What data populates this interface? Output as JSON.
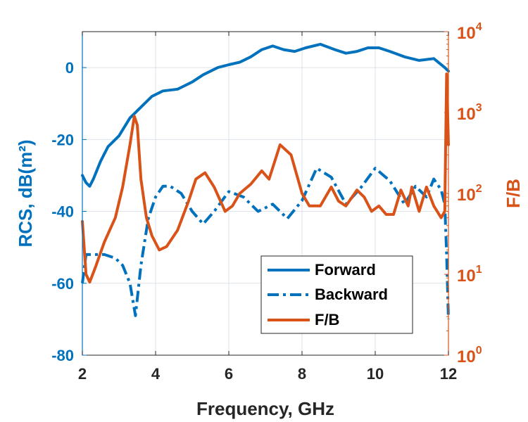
{
  "chart_data": {
    "type": "line",
    "xlabel": "Frequency, GHz",
    "ylabel_left": "RCS, dB(m²)",
    "ylabel_right": "F/B",
    "xlim": [
      2,
      12
    ],
    "ylim_left": [
      -80,
      10
    ],
    "ylim_right": [
      1,
      10000
    ],
    "y_right_scale": "log",
    "xticks": [
      "2",
      "4",
      "6",
      "8",
      "10",
      "12"
    ],
    "yticks_left": [
      "-80",
      "-60",
      "-40",
      "-20",
      "0"
    ],
    "yticks_right": [
      {
        "base": "10",
        "exp": "0"
      },
      {
        "base": "10",
        "exp": "1"
      },
      {
        "base": "10",
        "exp": "2"
      },
      {
        "base": "10",
        "exp": "3"
      },
      {
        "base": "10",
        "exp": "4"
      }
    ],
    "grid": true,
    "legend_position": "bottom-right",
    "colors": {
      "blue": "#0072BD",
      "orange": "#D95319"
    },
    "series": [
      {
        "name": "Forward",
        "axis": "left",
        "style": "solid",
        "color": "#0072BD",
        "x": [
          2.0,
          2.1,
          2.2,
          2.3,
          2.5,
          2.7,
          3.0,
          3.3,
          3.6,
          3.9,
          4.2,
          4.6,
          5.0,
          5.3,
          5.7,
          6.0,
          6.3,
          6.6,
          6.9,
          7.2,
          7.5,
          7.8,
          8.1,
          8.5,
          8.9,
          9.2,
          9.5,
          9.8,
          10.1,
          10.4,
          10.8,
          11.2,
          11.6,
          11.9,
          12.0
        ],
        "y": [
          -30,
          -32,
          -33,
          -31,
          -26,
          -22,
          -19,
          -14,
          -11,
          -8,
          -6.5,
          -6,
          -4,
          -2,
          0,
          0.8,
          1.5,
          3,
          5,
          6,
          5,
          4.5,
          5.5,
          6.5,
          5,
          4,
          4.5,
          5.5,
          5.5,
          4.5,
          3,
          2,
          2.5,
          0,
          -1
        ]
      },
      {
        "name": "Backward",
        "axis": "left",
        "style": "dashdot",
        "color": "#0072BD",
        "x": [
          2.0,
          2.1,
          2.3,
          2.6,
          2.9,
          3.1,
          3.3,
          3.45,
          3.6,
          3.8,
          4.0,
          4.2,
          4.4,
          4.7,
          5.0,
          5.3,
          5.6,
          6.0,
          6.4,
          6.8,
          7.2,
          7.6,
          8.0,
          8.4,
          8.8,
          9.2,
          9.6,
          10.0,
          10.4,
          10.8,
          11.1,
          11.4,
          11.6,
          11.8,
          11.9,
          11.95,
          12.0
        ],
        "y": [
          -60,
          -52,
          -52,
          -52,
          -53,
          -55,
          -60,
          -69,
          -55,
          -42,
          -36,
          -33,
          -33,
          -35,
          -40,
          -43.5,
          -40,
          -34.5,
          -36,
          -40,
          -38,
          -42,
          -37,
          -28,
          -30.5,
          -38,
          -33.5,
          -28,
          -31.5,
          -38,
          -33,
          -36,
          -31,
          -34,
          -38,
          -52,
          -70
        ]
      },
      {
        "name": "F/B",
        "axis": "right",
        "style": "solid",
        "color": "#D95319",
        "x": [
          2.0,
          2.1,
          2.2,
          2.35,
          2.6,
          2.9,
          3.1,
          3.3,
          3.42,
          3.5,
          3.6,
          3.75,
          3.9,
          4.1,
          4.3,
          4.6,
          4.9,
          5.1,
          5.35,
          5.6,
          5.9,
          6.1,
          6.3,
          6.6,
          6.9,
          7.1,
          7.4,
          7.7,
          8.0,
          8.2,
          8.5,
          8.8,
          9.0,
          9.2,
          9.5,
          9.7,
          9.9,
          10.1,
          10.3,
          10.5,
          10.7,
          10.9,
          11.0,
          11.2,
          11.4,
          11.6,
          11.8,
          11.9,
          11.95,
          12.0
        ],
        "y": [
          45,
          10,
          8,
          12,
          25,
          50,
          120,
          400,
          900,
          700,
          150,
          50,
          30,
          20,
          22,
          35,
          80,
          150,
          180,
          120,
          60,
          70,
          100,
          130,
          190,
          150,
          400,
          300,
          100,
          70,
          70,
          120,
          80,
          70,
          110,
          90,
          60,
          70,
          55,
          55,
          110,
          70,
          120,
          60,
          120,
          70,
          50,
          60,
          3000,
          400
        ]
      }
    ]
  }
}
